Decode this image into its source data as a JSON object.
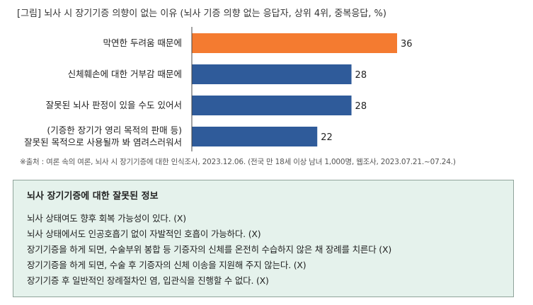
{
  "chart_data": {
    "type": "bar",
    "orientation": "horizontal",
    "title": "[그림] 뇌사 시 장기기증 의향이 없는 이유 (뇌사 기증 의향 없는 응답자, 상위 4위, 중복응답, %)",
    "categories": [
      [
        "막연한 두려움 때문에"
      ],
      [
        "신체훼손에 대한 거부감 때문에"
      ],
      [
        "잘못된 뇌사 판정이 있을 수도 있어서"
      ],
      [
        "(기증한 장기가 영리 목적의 판매 등)",
        "잘못된 목적으로 사용될까 봐 염려스러워서"
      ]
    ],
    "values": [
      36,
      28,
      28,
      22
    ],
    "value_labels": [
      "36",
      "28",
      "28",
      "22"
    ],
    "bar_colors": [
      "#f47b30",
      "#2f5b9a",
      "#2f5b9a",
      "#2f5b9a"
    ],
    "xlim": [
      0,
      36
    ],
    "grid": false,
    "legend": "none"
  },
  "source_note": "※출처 : 여론 속의 여론, 뇌사 시 장기기증에 대한 인식조사, 2023.12.06. (전국 만 18세 이상 남녀 1,000명, 웹조사, 2023.07.21.~07.24.)",
  "info_box": {
    "title": "뇌사 장기기증에 대한 잘못된 정보",
    "items": [
      "뇌사 상태여도 향후 회복 가능성이 있다. (X)",
      "뇌사 상태에서도 인공호흡기 없이 자발적인 호흡이 가능하다. (X)",
      "장기기증을 하게 되면, 수술부위 봉합 등 기증자의 신체를 온전히 수습하지 않은 채 장례를 치른다 (X)",
      "장기기증을 하게 되면, 수술 후 기증자의 신체 이송을 지원해 주지 않는다. (X)",
      "장기기증 후 일반적인 장례절차인 염, 입관식을 진행할 수 없다. (X)"
    ],
    "background": "#e5f2ec",
    "border": "#8fa39a"
  }
}
